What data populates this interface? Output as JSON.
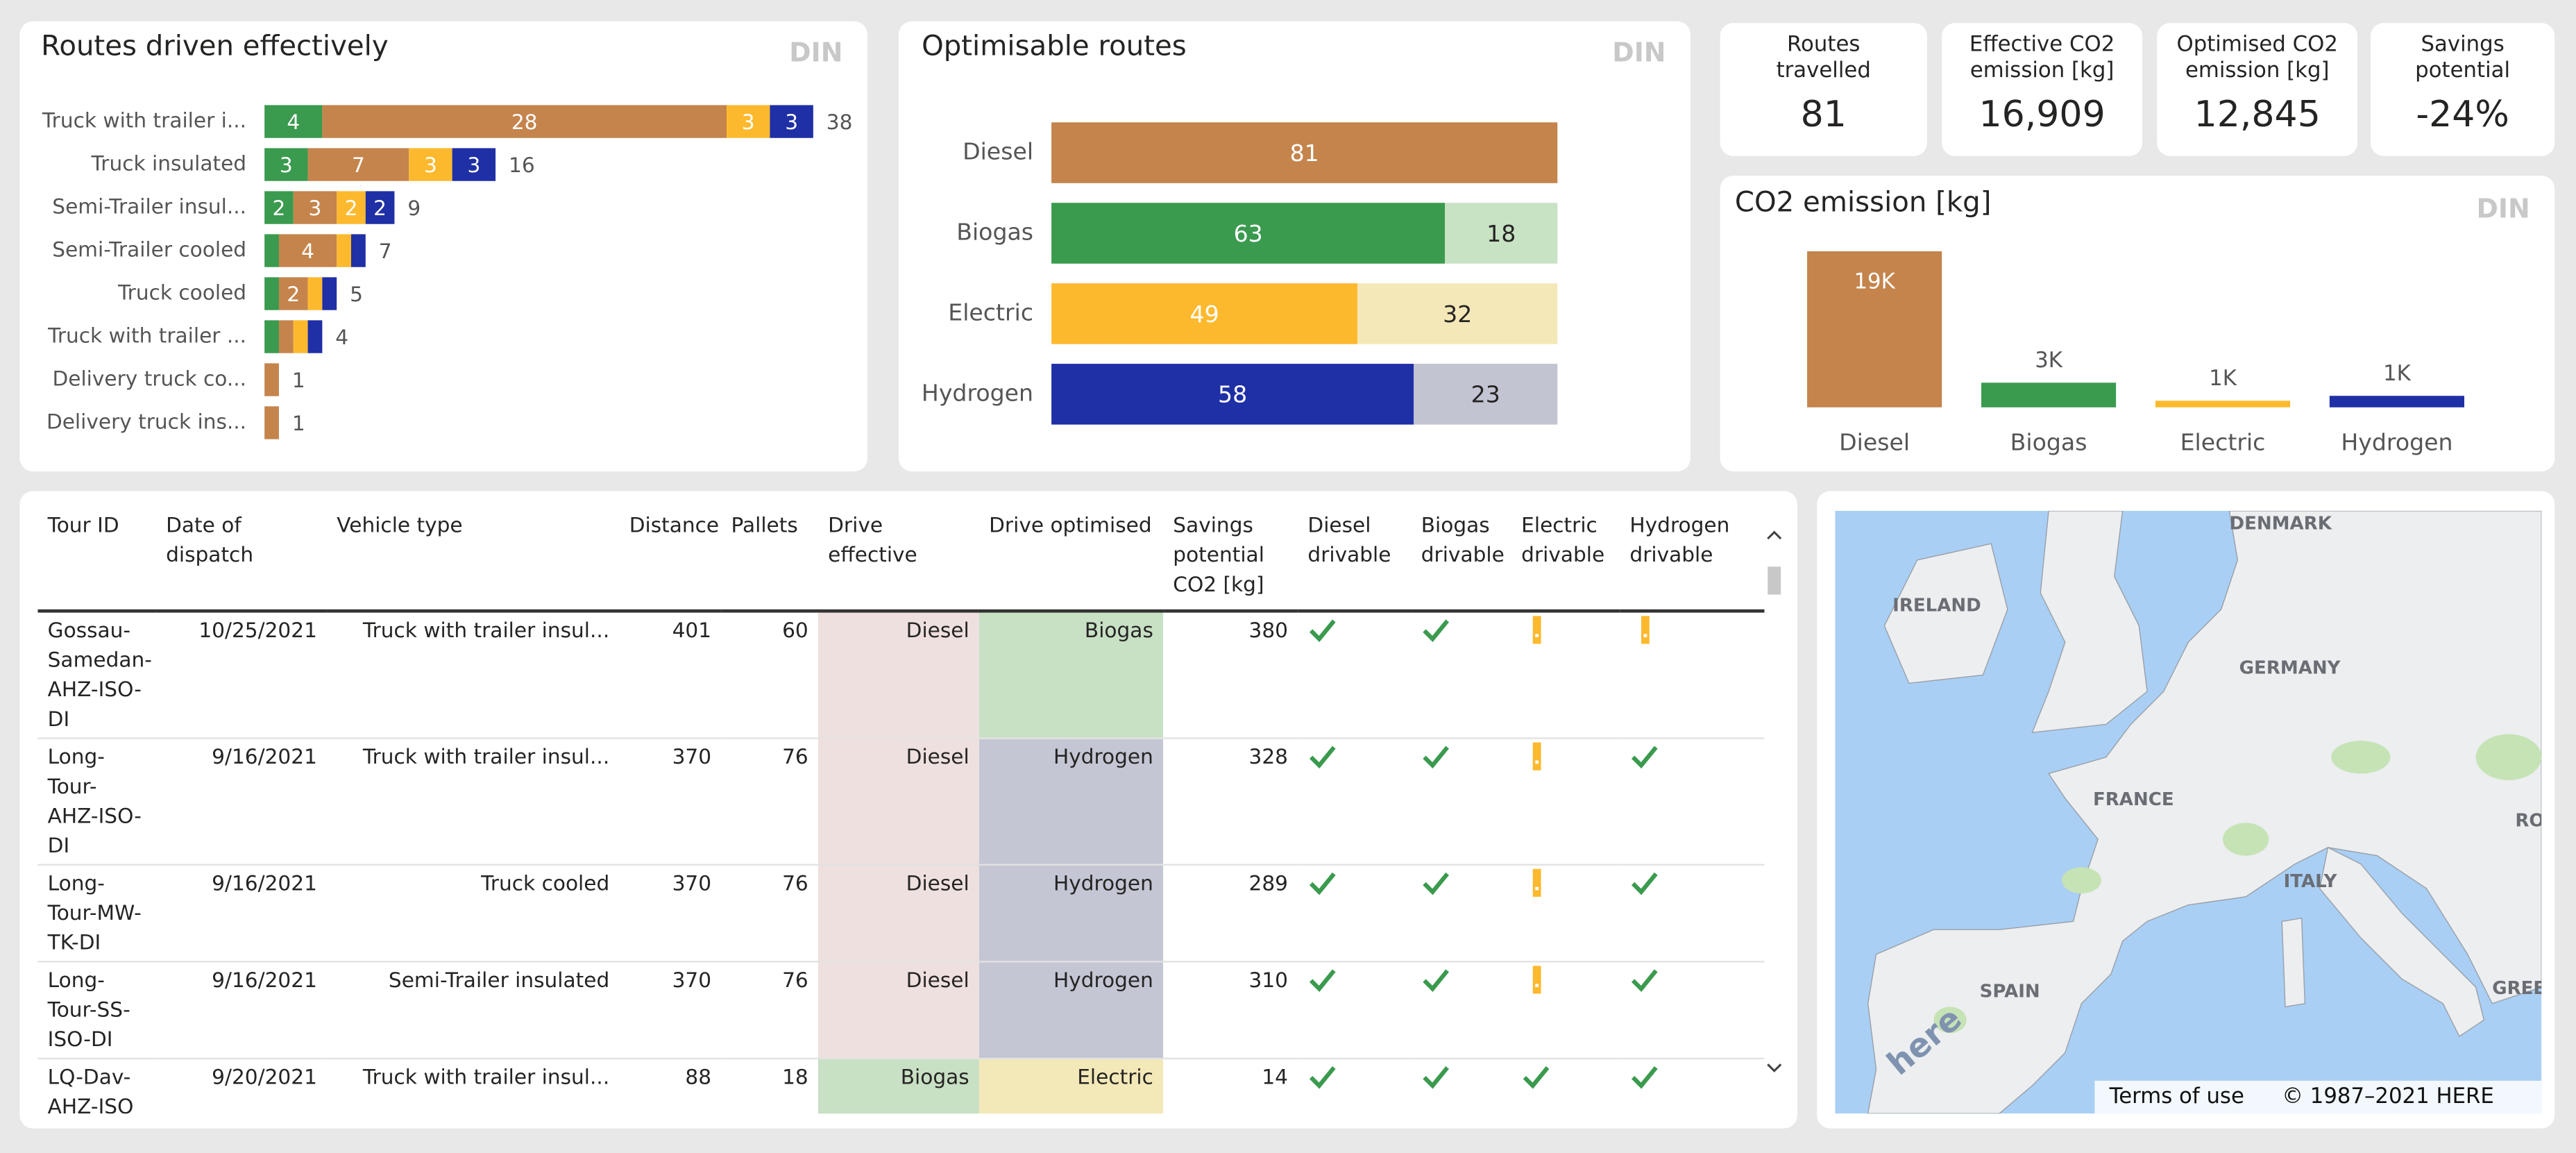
{
  "chart_data": [
    {
      "type": "bar",
      "orientation": "horizontal",
      "stacked": true,
      "title": "Routes driven effectively",
      "badge": "DIN",
      "categories": [
        "Truck with trailer i...",
        "Truck insulated",
        "Semi-Trailer insul...",
        "Semi-Trailer cooled",
        "Truck cooled",
        "Truck with trailer ...",
        "Delivery truck co...",
        "Delivery truck ins..."
      ],
      "series": [
        {
          "color": "#3a9a4e",
          "label_color": "#ffffff",
          "values": [
            4,
            3,
            2,
            1,
            1,
            1,
            0,
            0
          ]
        },
        {
          "color": "#c4844c",
          "label_color": "#ffffff",
          "values": [
            28,
            7,
            3,
            4,
            2,
            1,
            1,
            1
          ]
        },
        {
          "color": "#fdb92e",
          "label_color": "#ffffff",
          "values": [
            3,
            3,
            2,
            1,
            1,
            1,
            0,
            0
          ]
        },
        {
          "color": "#1f2fa5",
          "label_color": "#ffffff",
          "values": [
            3,
            3,
            2,
            1,
            1,
            1,
            0,
            0
          ]
        }
      ],
      "totals": [
        38,
        16,
        9,
        7,
        5,
        4,
        1,
        1
      ]
    },
    {
      "type": "bar",
      "orientation": "horizontal",
      "stacked": true,
      "title": "Optimisable routes",
      "badge": "DIN",
      "categories": [
        "Diesel",
        "Biogas",
        "Electric",
        "Hydrogen"
      ],
      "series": [
        {
          "colors": [
            "#c4844c",
            "#3a9a4e",
            "#fdb92e",
            "#1f2fa5"
          ],
          "label_color": "#ffffff",
          "values": [
            81,
            63,
            49,
            58
          ]
        },
        {
          "colors": [
            null,
            "#c8e2c4",
            "#f5e8b8",
            "#c2c4d2"
          ],
          "label_color": "#252423",
          "values": [
            null,
            18,
            32,
            23
          ]
        }
      ]
    },
    {
      "type": "bar",
      "orientation": "vertical",
      "title": "CO2 emission [kg]",
      "badge": "DIN",
      "categories": [
        "Diesel",
        "Biogas",
        "Electric",
        "Hydrogen"
      ],
      "values": [
        19000,
        3000,
        800,
        1400
      ],
      "value_labels": [
        "19K",
        "3K",
        "1K",
        "1K"
      ],
      "colors": [
        "#c4844c",
        "#3a9a4e",
        "#fdb92e",
        "#1f2fa5"
      ]
    }
  ],
  "kpis": [
    {
      "label": "Routes travelled",
      "value": "81"
    },
    {
      "label": "Effective CO2 emission [kg]",
      "value": "16,909"
    },
    {
      "label": "Optimised CO2 emission [kg]",
      "value": "12,845"
    },
    {
      "label": "Savings potential",
      "value": "-24%"
    }
  ],
  "table": {
    "columns": [
      "Tour ID",
      "Date of dispatch",
      "Vehicle type",
      "Distance",
      "Pallets",
      "Drive effective",
      "Drive optimised",
      "Savings potential CO2 [kg]",
      "Diesel drivable",
      "Biogas drivable",
      "Electric drivable",
      "Hydrogen drivable"
    ],
    "rows": [
      {
        "tour_id": "Gossau-Samedan-AHZ-ISO-DI",
        "date": "10/25/2021",
        "vehicle": "Truck with trailer insul...",
        "distance": "401",
        "pallets": "60",
        "effective": "Diesel",
        "effective_color": "#eee0de",
        "optimised": "Biogas",
        "optimised_color": "#c8e0c4",
        "savings": "380",
        "drivable": [
          true,
          true,
          false,
          false
        ]
      },
      {
        "tour_id": "Long-Tour-AHZ-ISO-DI",
        "date": "9/16/2021",
        "vehicle": "Truck with trailer insul...",
        "distance": "370",
        "pallets": "76",
        "effective": "Diesel",
        "effective_color": "#eee0de",
        "optimised": "Hydrogen",
        "optimised_color": "#c4c6d4",
        "savings": "328",
        "drivable": [
          true,
          true,
          false,
          true
        ]
      },
      {
        "tour_id": "Long-Tour-MW-TK-DI",
        "date": "9/16/2021",
        "vehicle": "Truck cooled",
        "distance": "370",
        "pallets": "76",
        "effective": "Diesel",
        "effective_color": "#eee0de",
        "optimised": "Hydrogen",
        "optimised_color": "#c4c6d4",
        "savings": "289",
        "drivable": [
          true,
          true,
          false,
          true
        ]
      },
      {
        "tour_id": "Long-Tour-SS-ISO-DI",
        "date": "9/16/2021",
        "vehicle": "Semi-Trailer insulated",
        "distance": "370",
        "pallets": "76",
        "effective": "Diesel",
        "effective_color": "#eee0de",
        "optimised": "Hydrogen",
        "optimised_color": "#c4c6d4",
        "savings": "310",
        "drivable": [
          true,
          true,
          false,
          true
        ]
      },
      {
        "tour_id": "LQ-Dav-AHZ-ISO",
        "date": "9/20/2021",
        "vehicle": "Truck with trailer insul...",
        "distance": "88",
        "pallets": "18",
        "effective": "Biogas",
        "effective_color": "#c8e0c4",
        "optimised": "Electric",
        "optimised_color": "#f3e8b8",
        "savings": "14",
        "drivable": [
          true,
          true,
          true,
          true
        ]
      }
    ]
  },
  "map": {
    "labels": [
      "DENMARK",
      "IRELAND",
      "GERMANY",
      "FRANCE",
      "ITALY",
      "SPAIN",
      "RO",
      "GREEC"
    ],
    "logo": "here",
    "terms": "Terms of use",
    "copyright": "© 1987–2021 HERE"
  }
}
